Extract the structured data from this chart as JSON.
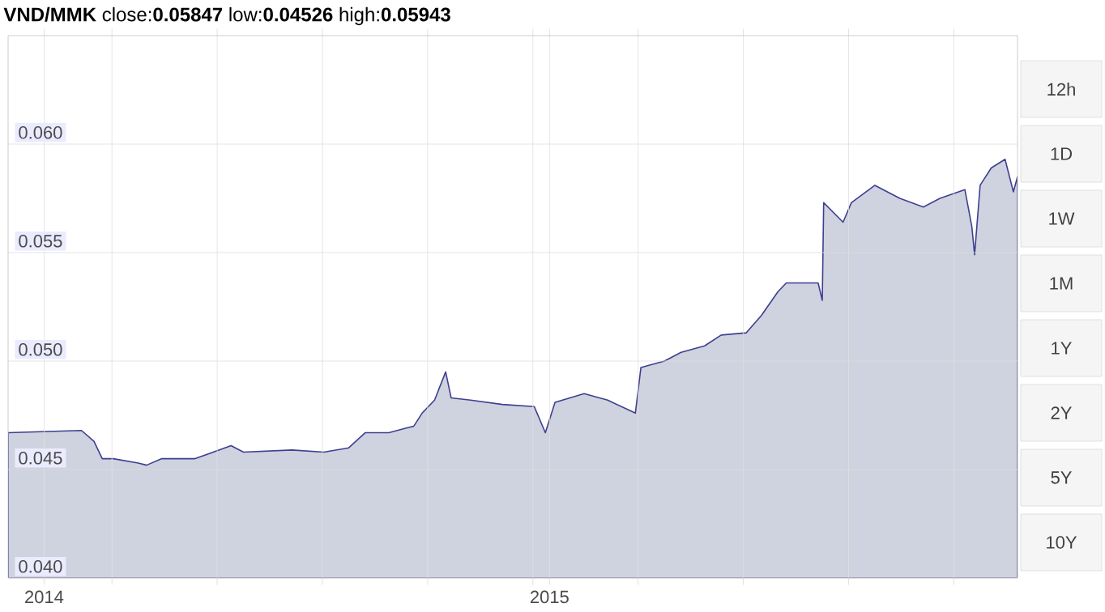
{
  "chart_data": {
    "type": "area",
    "title": "**VND/MMK** close:**0.05847** low:**0.04526** high:**0.05943**",
    "xlim": [
      "2013-12-06",
      "2015-12-05"
    ],
    "xticks": [
      {
        "value": "2014-01-01",
        "label": "2014"
      },
      {
        "value": "2014-02-19",
        "label": null
      },
      {
        "value": "2014-05-06",
        "label": null
      },
      {
        "value": "2014-07-21",
        "label": null
      },
      {
        "value": "2014-10-05",
        "label": null
      },
      {
        "value": "2014-12-20",
        "label": null
      },
      {
        "value": "2015-01-01",
        "label": "2015"
      },
      {
        "value": "2015-03-06",
        "label": null
      },
      {
        "value": "2015-05-21",
        "label": null
      },
      {
        "value": "2015-08-05",
        "label": null
      },
      {
        "value": "2015-10-20",
        "label": null
      }
    ],
    "ylim": [
      0.04,
      0.065
    ],
    "yticks": [
      {
        "value": 0.04,
        "label": "0.040"
      },
      {
        "value": 0.045,
        "label": "0.045"
      },
      {
        "value": 0.05,
        "label": "0.050"
      },
      {
        "value": 0.055,
        "label": "0.055"
      },
      {
        "value": 0.06,
        "label": "0.060"
      }
    ],
    "grid": true,
    "annotations": [
      "12h",
      "1D",
      "1W",
      "1M",
      "1Y",
      "2Y",
      "5Y",
      "10Y"
    ],
    "series": [
      {
        "color": "#cfd2df",
        "x": [
          "2013-12-06",
          "2014-01-28",
          "2014-02-06",
          "2014-02-12",
          "2014-02-20",
          "2014-03-10",
          "2014-03-16",
          "2014-03-27",
          "2014-04-20",
          "2014-05-16",
          "2014-05-25",
          "2014-06-29",
          "2014-07-22",
          "2014-08-09",
          "2014-08-21",
          "2014-09-07",
          "2014-09-19",
          "2014-09-25",
          "2014-10-01",
          "2014-10-10",
          "2014-10-18",
          "2014-10-22",
          "2014-11-05",
          "2014-11-28",
          "2014-12-21",
          "2014-12-29",
          "2015-01-05",
          "2015-01-26",
          "2015-02-12",
          "2015-03-04",
          "2015-03-08",
          "2015-03-25",
          "2015-04-06",
          "2015-04-23",
          "2015-05-05",
          "2015-05-23",
          "2015-06-03",
          "2015-06-15",
          "2015-06-21",
          "2015-07-14",
          "2015-07-17",
          "2015-07-18",
          "2015-08-01",
          "2015-08-07",
          "2015-08-24",
          "2015-09-11",
          "2015-09-28",
          "2015-10-10",
          "2015-10-28",
          "2015-11-02",
          "2015-11-04",
          "2015-11-08",
          "2015-11-16",
          "2015-11-26",
          "2015-12-02",
          "2015-12-05"
        ],
        "values": [
          0.0467,
          0.0468,
          0.0463,
          0.0455,
          0.0455,
          0.0453,
          0.0452,
          0.0455,
          0.0455,
          0.0461,
          0.0458,
          0.0459,
          0.0458,
          0.046,
          0.0467,
          0.0467,
          0.0469,
          0.047,
          0.0476,
          0.0482,
          0.0495,
          0.0483,
          0.0482,
          0.048,
          0.0479,
          0.0467,
          0.0481,
          0.0485,
          0.0482,
          0.0476,
          0.0497,
          0.05,
          0.0504,
          0.0507,
          0.0512,
          0.0513,
          0.0521,
          0.0532,
          0.0536,
          0.0536,
          0.0528,
          0.0573,
          0.0564,
          0.0573,
          0.0581,
          0.0575,
          0.0571,
          0.0575,
          0.0579,
          0.0562,
          0.0549,
          0.0581,
          0.0589,
          0.0593,
          0.0578,
          0.0585
        ]
      }
    ]
  }
}
